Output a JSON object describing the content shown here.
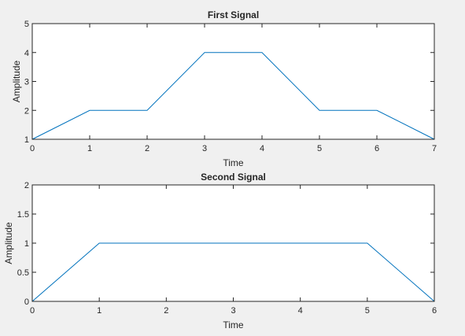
{
  "chart_data": [
    {
      "type": "line",
      "title": "First Signal",
      "xlabel": "Time",
      "ylabel": "Amplitude",
      "xlim": [
        0,
        7
      ],
      "ylim": [
        1,
        5
      ],
      "xticks": [
        "0",
        "1",
        "2",
        "3",
        "4",
        "5",
        "6",
        "7"
      ],
      "yticks": [
        "1",
        "2",
        "3",
        "4",
        "5"
      ],
      "grid": false,
      "series": [
        {
          "name": "signal",
          "x": [
            0,
            1,
            2,
            3,
            4,
            5,
            6,
            7
          ],
          "y": [
            1,
            2,
            2,
            4,
            4,
            2,
            2,
            1
          ],
          "color": "#0072bd"
        }
      ]
    },
    {
      "type": "line",
      "title": "Second Signal",
      "xlabel": "Time",
      "ylabel": "Amplitude",
      "xlim": [
        0,
        6
      ],
      "ylim": [
        0,
        2
      ],
      "xticks": [
        "0",
        "1",
        "2",
        "3",
        "4",
        "5",
        "6"
      ],
      "yticks": [
        "0",
        "0.5",
        "1",
        "1.5",
        "2"
      ],
      "grid": false,
      "series": [
        {
          "name": "signal",
          "x": [
            0,
            1,
            5,
            6
          ],
          "y": [
            0,
            1,
            1,
            0
          ],
          "color": "#0072bd"
        }
      ]
    }
  ]
}
